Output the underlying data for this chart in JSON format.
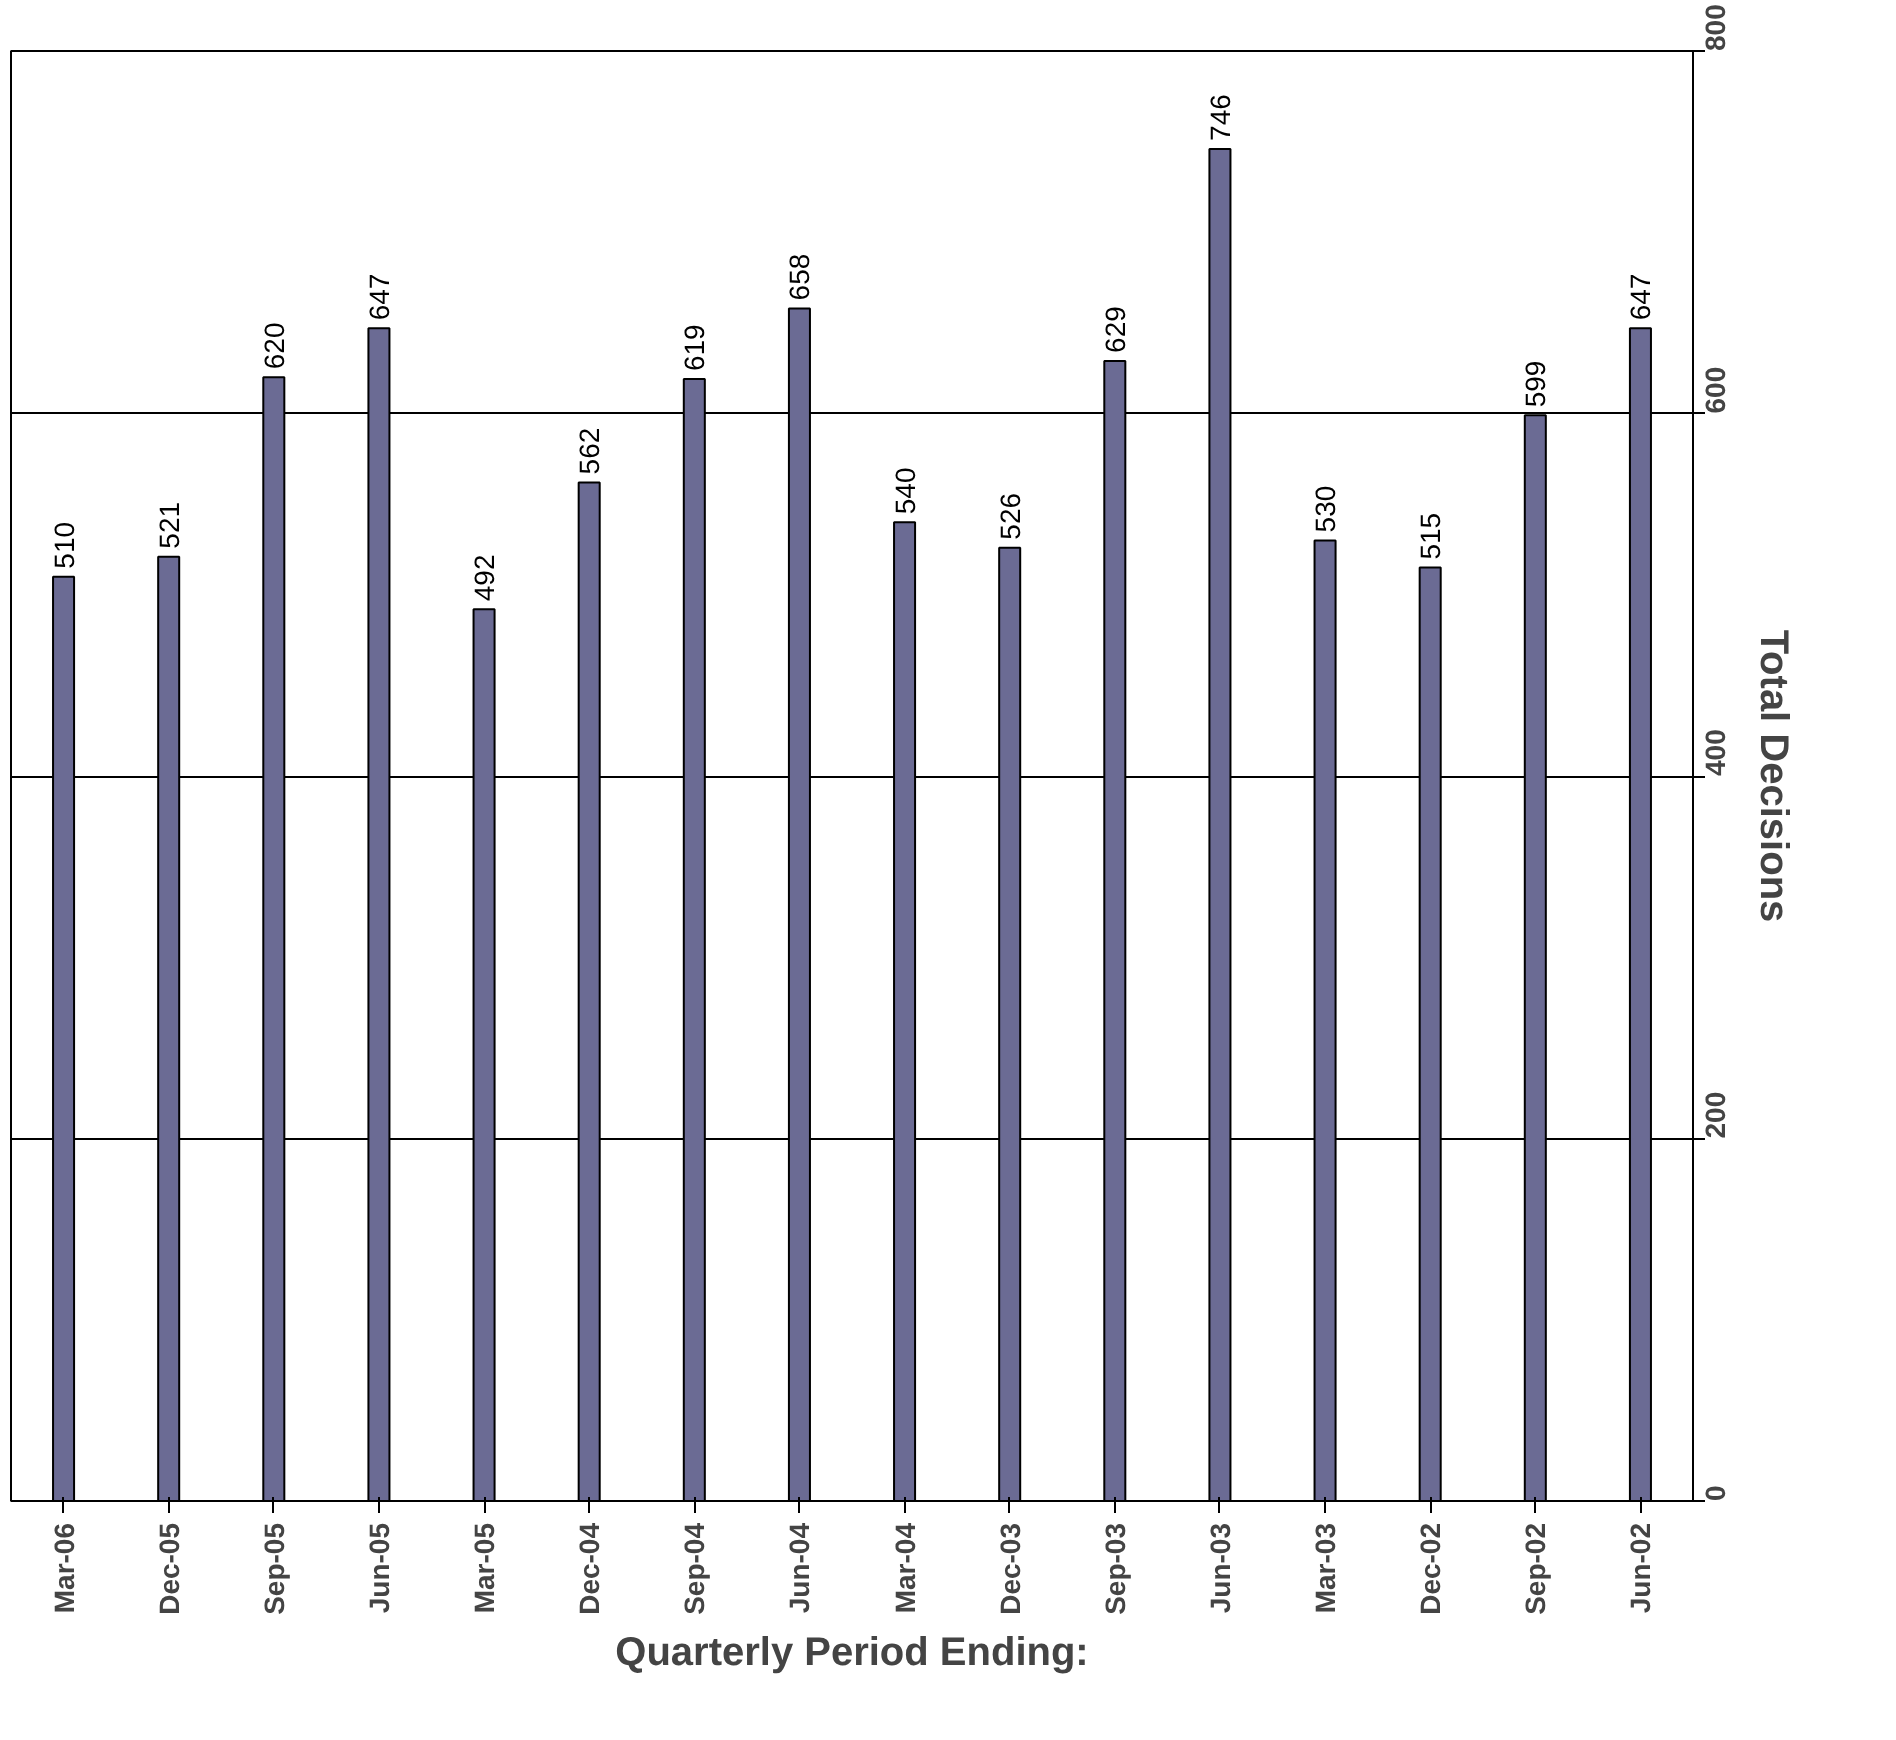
{
  "chart_data": {
    "type": "bar",
    "xlabel": "Quarterly Period Ending:",
    "ylabel": "Total Decisions",
    "categories": [
      "Mar-06",
      "Dec-05",
      "Sep-05",
      "Jun-05",
      "Mar-05",
      "Dec-04",
      "Sep-04",
      "Jun-04",
      "Mar-04",
      "Dec-03",
      "Sep-03",
      "Jun-03",
      "Mar-03",
      "Dec-02",
      "Sep-02",
      "Jun-02"
    ],
    "values": [
      510,
      521,
      620,
      647,
      492,
      562,
      619,
      658,
      540,
      526,
      629,
      746,
      530,
      515,
      599,
      647
    ],
    "color": "#6b6b94",
    "ylim": [
      0,
      800
    ],
    "yticks": [
      0,
      200,
      400,
      600,
      800
    ],
    "grid": "y",
    "data_labels": true
  }
}
